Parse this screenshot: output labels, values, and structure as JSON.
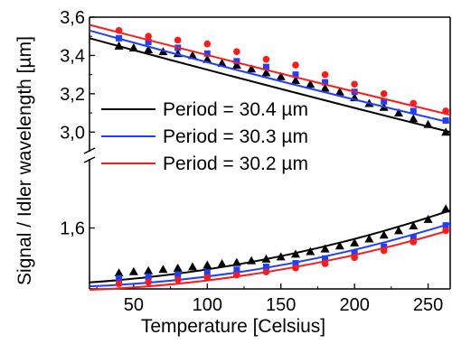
{
  "chart_data": {
    "type": "scatter",
    "xlabel": "Temperature [Celsius]",
    "ylabel": "Signal / Idler wavelength [µm]",
    "xlim": [
      20,
      265
    ],
    "x_ticks": [
      "50",
      "100",
      "150",
      "200",
      "250"
    ],
    "x_tick_values": [
      50,
      100,
      150,
      200,
      250
    ],
    "y_upper_ticks": [
      "3,0",
      "3,2",
      "3,4",
      "3,6"
    ],
    "y_upper_tick_values": [
      3.0,
      3.2,
      3.4,
      3.6
    ],
    "y_lower_ticks": [
      "1,6"
    ],
    "y_lower_tick_values": [
      1.6
    ],
    "ylim_upper": [
      2.94,
      3.6
    ],
    "ylim_lower": [
      1.46,
      1.74
    ],
    "axis_break": true,
    "legend_position": "middle-left",
    "series": [
      {
        "name": "Period = 30.4 µm",
        "color": "#000000",
        "marker": "triangle",
        "x": [
          40,
          50,
          60,
          70,
          80,
          90,
          100,
          110,
          120,
          130,
          140,
          150,
          160,
          170,
          180,
          190,
          200,
          210,
          220,
          230,
          240,
          250,
          262
        ],
        "upper": [
          3.45,
          3.44,
          3.43,
          3.42,
          3.41,
          3.4,
          3.38,
          3.36,
          3.35,
          3.33,
          3.31,
          3.29,
          3.27,
          3.25,
          3.23,
          3.21,
          3.18,
          3.15,
          3.13,
          3.1,
          3.07,
          3.04,
          3.0
        ],
        "lower": [
          1.497,
          1.5,
          1.502,
          1.505,
          1.508,
          1.511,
          1.515,
          1.518,
          1.521,
          1.525,
          1.529,
          1.534,
          1.54,
          1.546,
          1.552,
          1.559,
          1.566,
          1.575,
          1.584,
          1.594,
          1.605,
          1.62,
          1.644
        ],
        "fit_upper": [
          3.49,
          3.24,
          3.0
        ],
        "fit_lower": [
          1.475,
          1.53,
          1.64
        ]
      },
      {
        "name": "Period = 30.3 µm",
        "color": "#1f3fff",
        "marker": "square",
        "x": [
          40,
          60,
          80,
          100,
          120,
          140,
          160,
          180,
          200,
          220,
          240,
          262
        ],
        "upper": [
          3.49,
          3.47,
          3.44,
          3.41,
          3.37,
          3.34,
          3.3,
          3.26,
          3.21,
          3.16,
          3.11,
          3.06
        ],
        "lower": [
          1.484,
          1.488,
          1.493,
          1.498,
          1.504,
          1.511,
          1.519,
          1.53,
          1.542,
          1.557,
          1.578,
          1.606
        ],
        "fit_upper": [
          3.53,
          3.28,
          3.05
        ],
        "fit_lower": [
          1.466,
          1.51,
          1.61
        ]
      },
      {
        "name": "Period = 30.2 µm",
        "color": "#ff1a1a",
        "marker": "circle",
        "x": [
          40,
          60,
          80,
          100,
          120,
          140,
          160,
          180,
          200,
          220,
          240,
          262
        ],
        "upper": [
          3.53,
          3.5,
          3.48,
          3.46,
          3.42,
          3.38,
          3.35,
          3.3,
          3.25,
          3.2,
          3.15,
          3.11
        ],
        "lower": [
          1.472,
          1.476,
          1.481,
          1.486,
          1.492,
          1.499,
          1.508,
          1.518,
          1.532,
          1.548,
          1.568,
          1.594
        ],
        "fit_upper": [
          3.56,
          3.32,
          3.09
        ],
        "fit_lower": [
          1.458,
          1.5,
          1.595
        ]
      }
    ]
  }
}
